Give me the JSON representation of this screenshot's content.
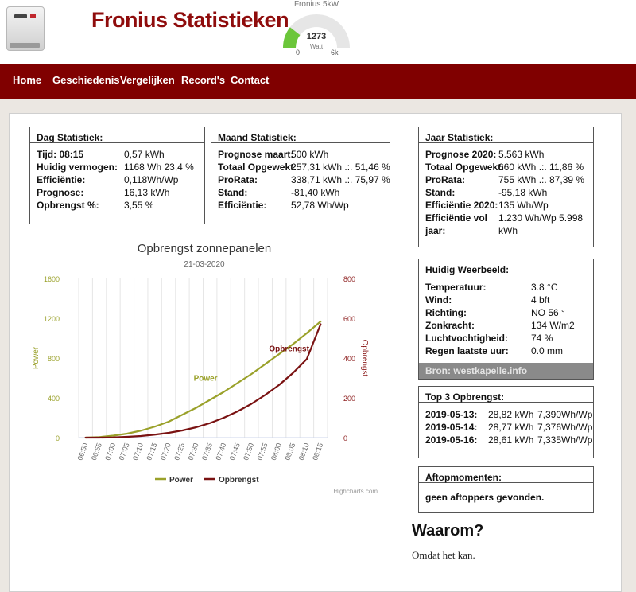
{
  "header": {
    "title": "Fronius Statistieken",
    "gauge": {
      "title": "Fronius 5kW",
      "value": "1273",
      "unit": "Watt",
      "min": "0",
      "max": "6k",
      "fraction": 0.21,
      "color": "#6bc63a"
    }
  },
  "nav": [
    {
      "label": "Home"
    },
    {
      "label": "Geschiedenis"
    },
    {
      "label": "Vergelijken"
    },
    {
      "label": "Record's"
    },
    {
      "label": "Contact"
    }
  ],
  "dag": {
    "title": "Dag Statistiek:",
    "rows": [
      {
        "k": "Tijd: 08:15",
        "v": "0,57 kWh"
      },
      {
        "k": "Huidig vermogen:",
        "v": "1168 Wh 23,4 %"
      },
      {
        "k": "Efficiëntie:",
        "v": "0,118Wh/Wp"
      },
      {
        "k": "Prognose:",
        "v": "16,13 kWh"
      },
      {
        "k": "Opbrengst %:",
        "v": "3,55 %"
      }
    ]
  },
  "maand": {
    "title": "Maand Statistiek:",
    "rows": [
      {
        "k": "Prognose maart:",
        "v": "500 kWh"
      },
      {
        "k": "Totaal Opgewekt:",
        "v": "257,31 kWh .:. 51,46 %"
      },
      {
        "k": "ProRata:",
        "v": "338,71 kWh .:. 75,97 %"
      },
      {
        "k": "Stand:",
        "v": "-81,40 kWh"
      },
      {
        "k": "Efficiëntie:",
        "v": "52,78 Wh/Wp"
      }
    ]
  },
  "jaar": {
    "title": "Jaar Statistiek:",
    "rows": [
      {
        "k": "Prognose 2020:",
        "v": "5.563 kWh"
      },
      {
        "k": "Totaal Opgewekt:",
        "v": "660 kWh .:. 11,86 %"
      },
      {
        "k": "ProRata:",
        "v": "755 kWh .:. 87,39 %"
      },
      {
        "k": "Stand:",
        "v": "-95,18 kWh"
      },
      {
        "k": "Efficiëntie 2020:",
        "v": "135 Wh/Wp"
      },
      {
        "k": "Efficiëntie vol",
        "v": "1.230 Wh/Wp 5.998"
      },
      {
        "k": "jaar:",
        "v": "kWh"
      }
    ]
  },
  "weer": {
    "title": "Huidig Weerbeeld:",
    "rows": [
      {
        "k": "Temperatuur:",
        "v": "3.8 °C"
      },
      {
        "k": "Wind:",
        "v": "4 bft"
      },
      {
        "k": "Richting:",
        "v": "NO 56 °"
      },
      {
        "k": "Zonkracht:",
        "v": "134 W/m2"
      },
      {
        "k": "Luchtvochtigheid:",
        "v": "74 %"
      },
      {
        "k": "Regen laatste uur:",
        "v": "0.0 mm"
      }
    ],
    "source": "Bron: westkapelle.info"
  },
  "top3": {
    "title": "Top 3 Opbrengst:",
    "rows": [
      {
        "date": "2019-05-13:",
        "kwh": "28,82 kWh",
        "wp": "7,390Wh/Wp"
      },
      {
        "date": "2019-05-14:",
        "kwh": "28,77 kWh",
        "wp": "7,376Wh/Wp"
      },
      {
        "date": "2019-05-16:",
        "kwh": "28,61 kWh",
        "wp": "7,335Wh/Wp"
      }
    ]
  },
  "aftop": {
    "title": "Aftopmomenten:",
    "text": "geen aftoppers gevonden."
  },
  "waarom": {
    "title": "Waarom?",
    "text": "Omdat het kan."
  },
  "chart_data": {
    "type": "line",
    "title": "Opbrengst zonnepanelen",
    "subtitle": "21-03-2020",
    "credits": "Highcharts.com",
    "categories": [
      "06:50",
      "06:55",
      "07:00",
      "07:05",
      "07:10",
      "07:15",
      "07:20",
      "07:25",
      "07:30",
      "07:35",
      "07:40",
      "07:45",
      "07:50",
      "07:55",
      "08:00",
      "08:05",
      "08:10",
      "08:15"
    ],
    "yaxis_left": {
      "label": "Power",
      "min": 0,
      "max": 1600,
      "ticks": [
        0,
        400,
        800,
        1200,
        1600
      ],
      "color": "#9aa12a"
    },
    "yaxis_right": {
      "label": "Opbrengst",
      "min": 0,
      "max": 800,
      "ticks": [
        0,
        200,
        400,
        600,
        800
      ],
      "color": "#8b1a1a"
    },
    "grid": true,
    "legend": "bottom-center",
    "series": [
      {
        "name": "Power",
        "axis": "left",
        "color": "#9aa12a",
        "values": [
          0,
          5,
          20,
          40,
          70,
          110,
          160,
          230,
          300,
          380,
          460,
          550,
          640,
          740,
          840,
          940,
          1050,
          1168
        ],
        "label_at": 10
      },
      {
        "name": "Opbrengst",
        "axis": "right",
        "color": "#7a1212",
        "values": [
          0,
          0,
          1,
          4,
          8,
          15,
          24,
          36,
          52,
          73,
          100,
          132,
          170,
          215,
          265,
          325,
          395,
          570
        ],
        "label_at": 16
      }
    ]
  }
}
